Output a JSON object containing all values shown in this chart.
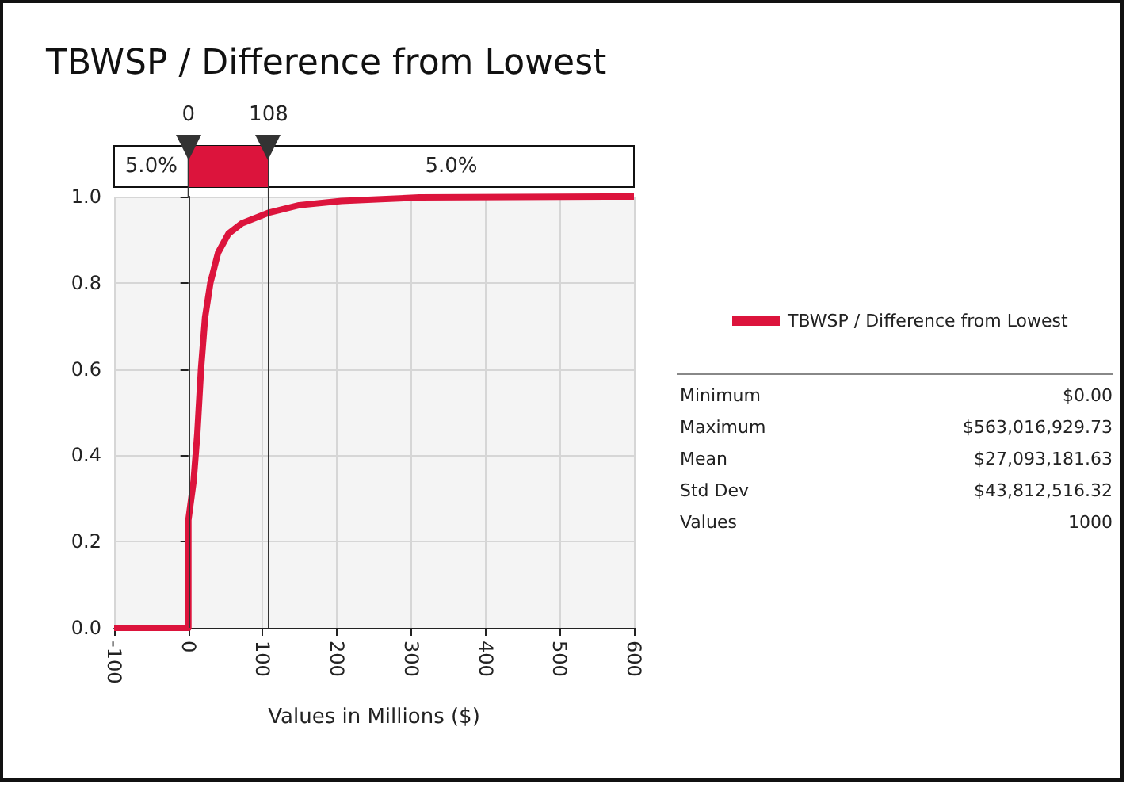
{
  "chart_data": {
    "type": "line",
    "title": "TBWSP / Difference from Lowest",
    "xlabel": "Values in Millions ($)",
    "x": [
      -100,
      0,
      0,
      7,
      12,
      17,
      22.5,
      29.6,
      40,
      54,
      72,
      107,
      149,
      206,
      311,
      563,
      600
    ],
    "series": [
      {
        "name": "TBWSP / Difference from Lowest",
        "color": "#dc143c",
        "values": [
          0,
          0,
          0.25,
          0.34,
          0.45,
          0.6,
          0.72,
          0.8,
          0.87,
          0.914,
          0.938,
          0.962,
          0.98,
          0.99,
          0.998,
          1,
          1
        ]
      }
    ],
    "xlim": [
      -100,
      600
    ],
    "xticks": [
      -100,
      0,
      100,
      200,
      300,
      400,
      500,
      600
    ],
    "ylim": [
      0,
      1
    ],
    "yticks": [
      {
        "value": 0,
        "label": "0.0"
      },
      {
        "value": 0.2,
        "label": "0.2"
      },
      {
        "value": 0.4,
        "label": "0.4"
      },
      {
        "value": 0.6,
        "label": "0.6"
      },
      {
        "value": 0.8,
        "label": "0.8"
      },
      {
        "value": 1,
        "label": "1.0"
      }
    ],
    "ref_lines": [
      {
        "axis": "x",
        "value": 0,
        "label": "0",
        "color": "#333333"
      },
      {
        "axis": "x",
        "value": 108,
        "label": "108",
        "color": "#333333"
      }
    ],
    "annotations": [
      "5.0%",
      "5.0%",
      "Minimum",
      "$0.00",
      "Maximum",
      "$563,016,929.73",
      "Mean",
      "$27,093,181.63",
      "Std Dev",
      "$43,812,516.32",
      "Values",
      "1000"
    ],
    "grid": true,
    "legend": "right",
    "marker": "none",
    "line_style": "solid"
  }
}
